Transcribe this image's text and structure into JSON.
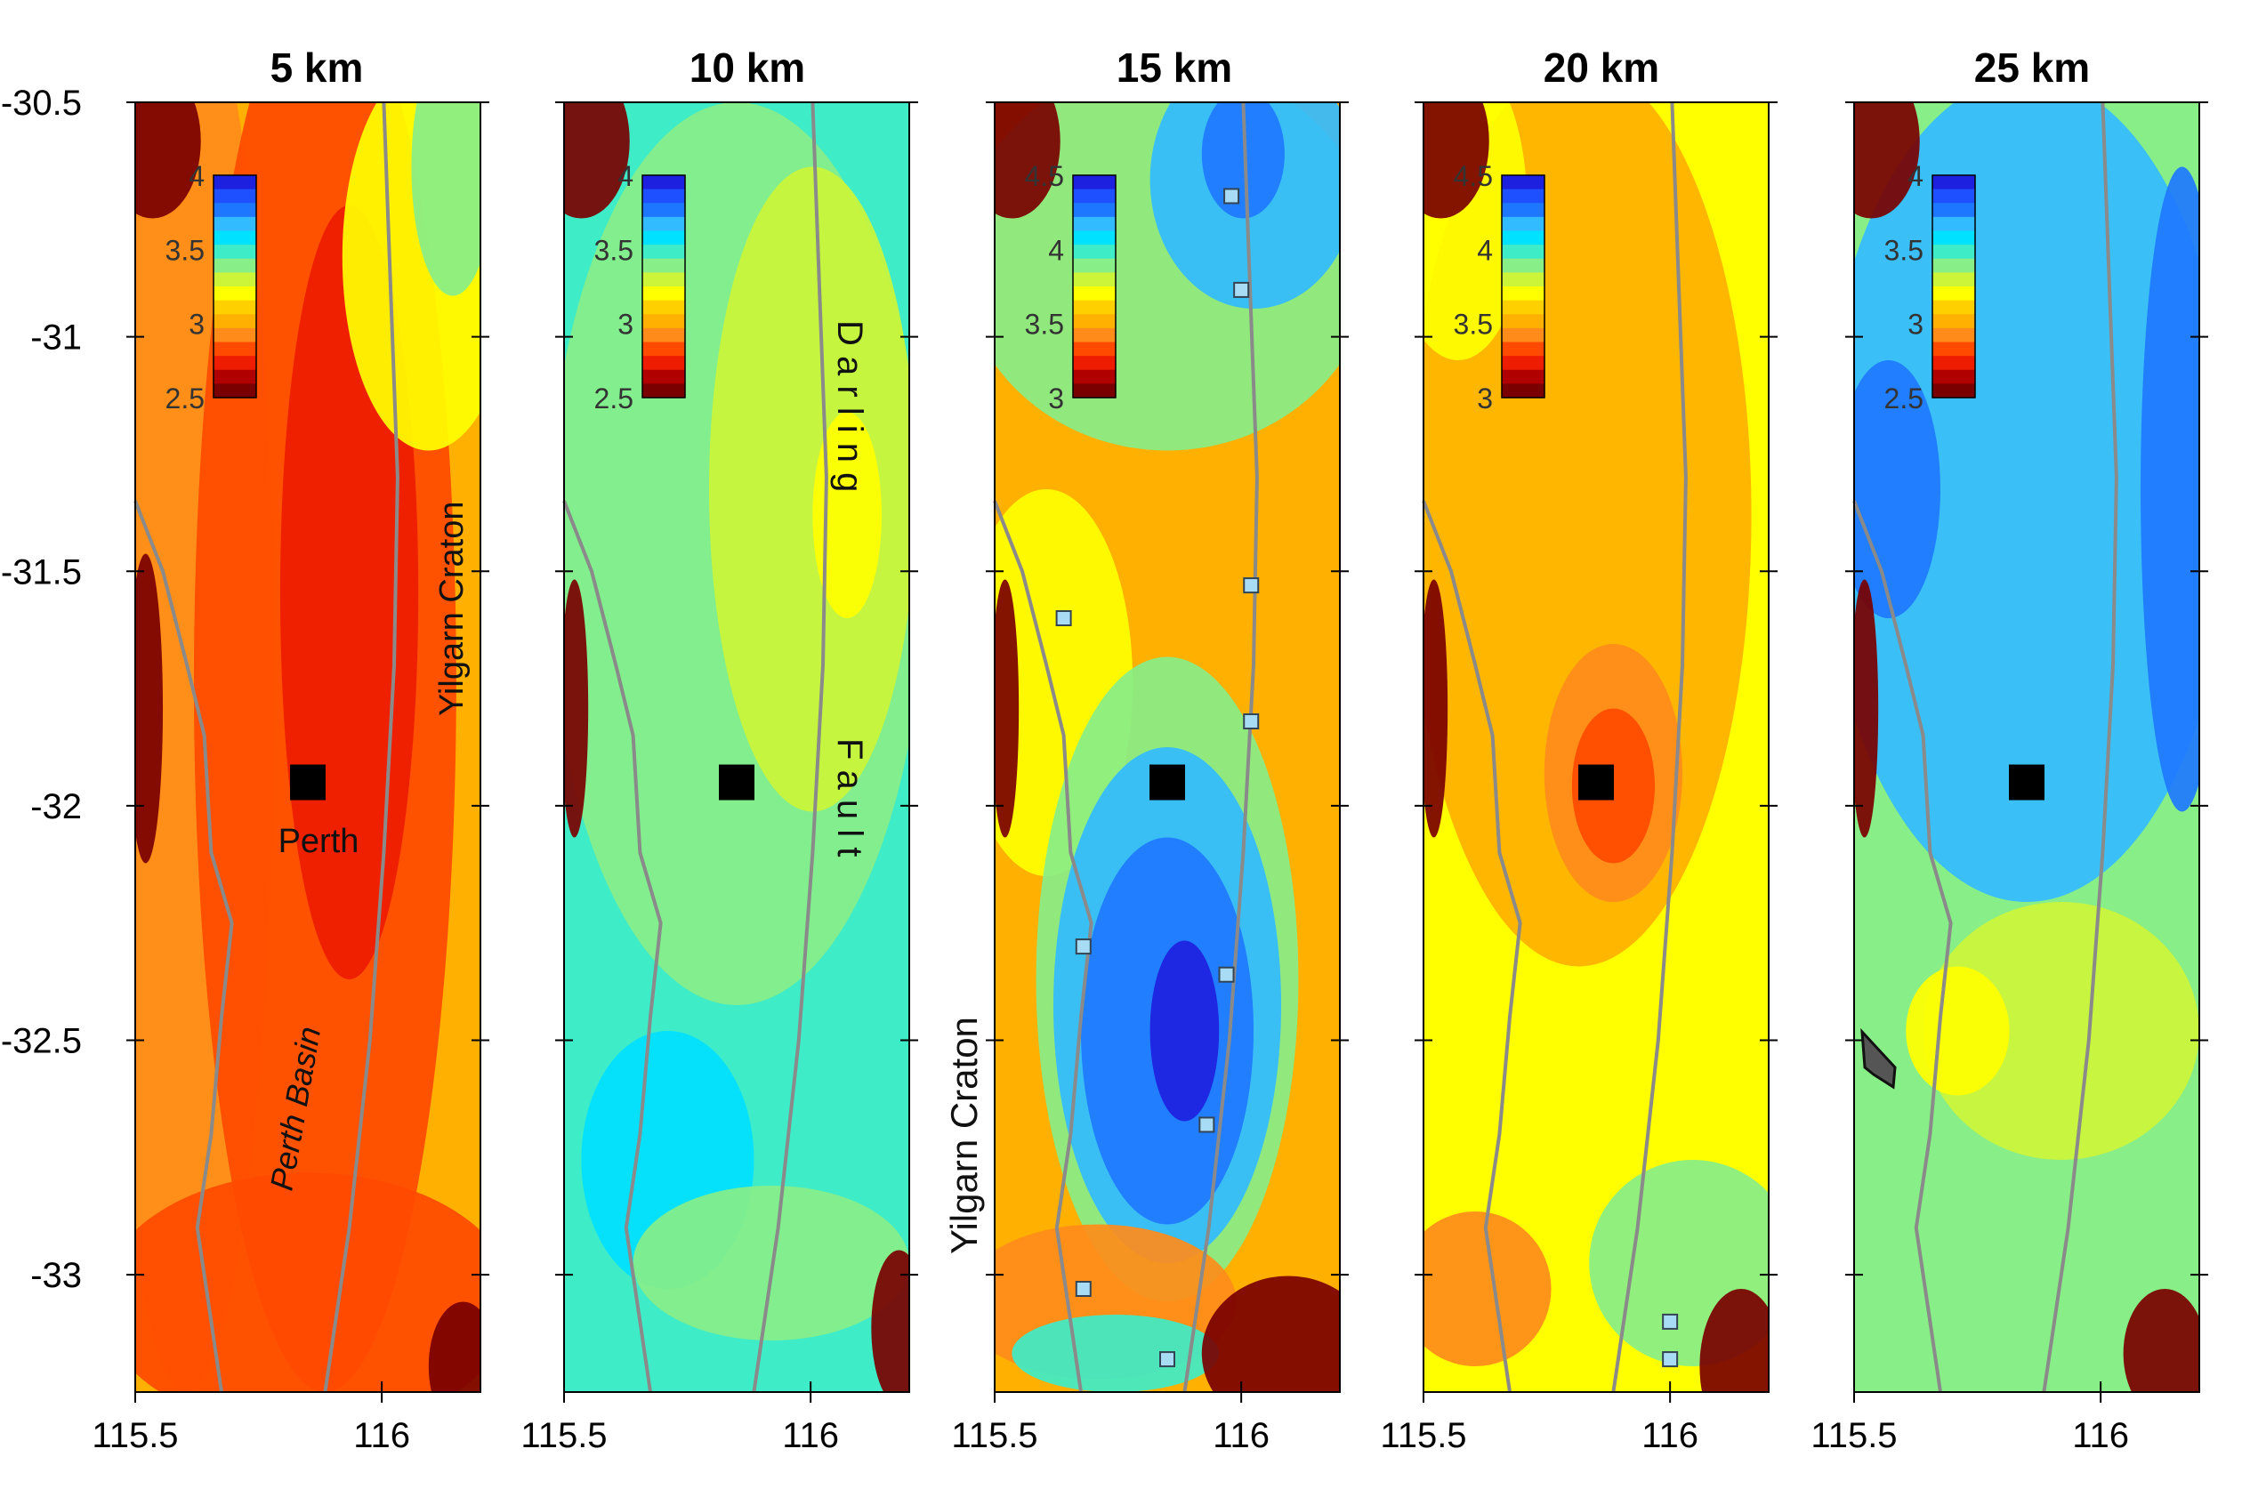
{
  "figure": {
    "panels": [
      {
        "title": "5 km",
        "colorbar_ticks": [
          "4",
          "3.5",
          "3",
          "2.5"
        ],
        "scheme": "p5"
      },
      {
        "title": "10 km",
        "colorbar_ticks": [
          "4",
          "3.5",
          "3",
          "2.5"
        ],
        "scheme": "p10"
      },
      {
        "title": "15 km",
        "colorbar_ticks": [
          "4.5",
          "4",
          "3.5",
          "3"
        ],
        "scheme": "p15"
      },
      {
        "title": "20 km",
        "colorbar_ticks": [
          "4.5",
          "4",
          "3.5",
          "3"
        ],
        "scheme": "p20"
      },
      {
        "title": "25 km",
        "colorbar_ticks": [
          "4",
          "3.5",
          "3",
          "2.5"
        ],
        "scheme": "p25"
      }
    ],
    "y_ticks": [
      {
        "label": "-30.5",
        "value": -30.5
      },
      {
        "label": "-31",
        "value": -31
      },
      {
        "label": "-31.5",
        "value": -31.5
      },
      {
        "label": "-32",
        "value": -32
      },
      {
        "label": "-32.5",
        "value": -32.5
      },
      {
        "label": "-33",
        "value": -33
      }
    ],
    "x_ticks": [
      {
        "label": "115.5",
        "value": 115.5
      },
      {
        "label": "116",
        "value": 116
      }
    ],
    "lon_range": [
      115.5,
      116.2
    ],
    "lat_range": [
      -33.25,
      -30.5
    ],
    "annotations": {
      "perth": "Perth",
      "perth_basin": "Perth Basin",
      "yilgarn_craton_panel1": "Yilgarn Craton",
      "darling": "D a r l i n g",
      "fault": "F a u l t",
      "yilgarn_craton_side": "Yilgarn Craton"
    },
    "markers": {
      "perth_location": {
        "lon": 115.85,
        "lat": -31.95
      },
      "stations_15km": [
        {
          "lon": 115.98,
          "lat": -30.7
        },
        {
          "lon": 116.0,
          "lat": -30.9
        },
        {
          "lon": 116.02,
          "lat": -31.53
        },
        {
          "lon": 116.02,
          "lat": -31.82
        },
        {
          "lon": 115.64,
          "lat": -31.6
        },
        {
          "lon": 115.68,
          "lat": -32.3
        },
        {
          "lon": 115.97,
          "lat": -32.36
        },
        {
          "lon": 115.93,
          "lat": -32.68
        },
        {
          "lon": 115.68,
          "lat": -33.03
        },
        {
          "lon": 115.85,
          "lat": -33.18
        }
      ],
      "stations_20km": [
        {
          "lon": 116.0,
          "lat": -33.1
        },
        {
          "lon": 116.0,
          "lat": -33.18
        }
      ]
    },
    "colors": {
      "darkred": "#7a0000",
      "red": "#ee1c00",
      "orangered": "#ff4a00",
      "orange": "#ff8c1a",
      "amber": "#ffb000",
      "yellow": "#ffff00",
      "yellowgreen": "#ccf53a",
      "lightgreen": "#88ee88",
      "aqua": "#3fecc8",
      "cyan": "#00e0ff",
      "skyblue": "#33bbff",
      "blue": "#1e78ff",
      "darkblue": "#1e20e0",
      "line": "#8a8a8a",
      "station": "#a8dcf5"
    }
  }
}
